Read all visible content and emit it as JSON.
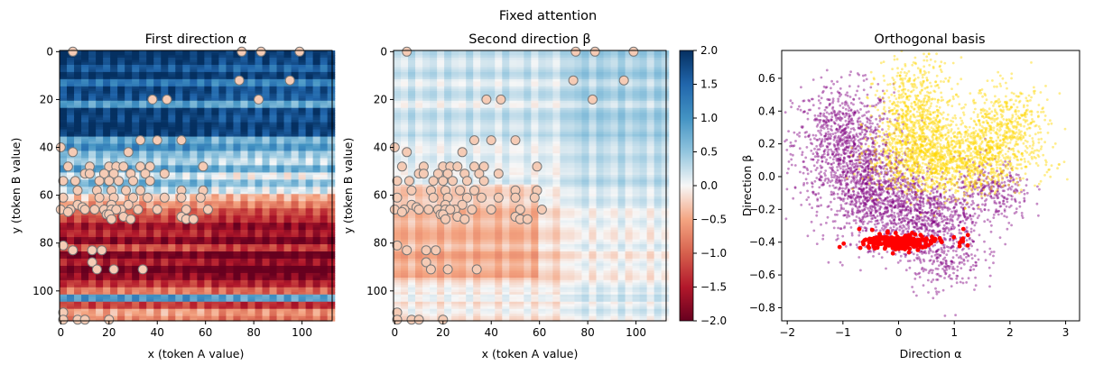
{
  "suptitle": "Fixed attention",
  "chart_data": [
    {
      "type": "heatmap",
      "title": "First direction α",
      "xlabel": "x (token A value)",
      "ylabel": "y (token B value)",
      "xlim": [
        0,
        113
      ],
      "ylim": [
        113,
        0
      ],
      "xticks": [
        0,
        20,
        40,
        60,
        80,
        100
      ],
      "yticks": [
        0,
        20,
        40,
        60,
        80,
        100
      ],
      "colormap": "RdBu",
      "vmin": -2.0,
      "vmax": 2.0,
      "row_profile": [
        {
          "y": 0,
          "v": 2.0
        },
        {
          "y": 3,
          "v": 1.9
        },
        {
          "y": 6,
          "v": 1.6
        },
        {
          "y": 9,
          "v": 2.0
        },
        {
          "y": 12,
          "v": 1.3
        },
        {
          "y": 15,
          "v": 1.8
        },
        {
          "y": 18,
          "v": 1.7
        },
        {
          "y": 21,
          "v": 0.9
        },
        {
          "y": 24,
          "v": 1.9
        },
        {
          "y": 27,
          "v": 1.8
        },
        {
          "y": 30,
          "v": 2.0
        },
        {
          "y": 33,
          "v": 1.9
        },
        {
          "y": 36,
          "v": 0.8
        },
        {
          "y": 39,
          "v": 1.1
        },
        {
          "y": 42,
          "v": 0.6
        },
        {
          "y": 45,
          "v": 0.4
        },
        {
          "y": 48,
          "v": 0.9
        },
        {
          "y": 51,
          "v": 0.2
        },
        {
          "y": 54,
          "v": 0.7
        },
        {
          "y": 57,
          "v": 0.3
        },
        {
          "y": 60,
          "v": -0.3
        },
        {
          "y": 63,
          "v": -0.6
        },
        {
          "y": 66,
          "v": -1.0
        },
        {
          "y": 69,
          "v": -1.2
        },
        {
          "y": 72,
          "v": -1.6
        },
        {
          "y": 75,
          "v": -1.4
        },
        {
          "y": 78,
          "v": -1.8
        },
        {
          "y": 81,
          "v": -1.1
        },
        {
          "y": 84,
          "v": -1.9
        },
        {
          "y": 87,
          "v": -1.5
        },
        {
          "y": 90,
          "v": -2.0
        },
        {
          "y": 93,
          "v": -1.7
        },
        {
          "y": 96,
          "v": -1.3
        },
        {
          "y": 99,
          "v": -0.8
        },
        {
          "y": 102,
          "v": 1.0
        },
        {
          "y": 105,
          "v": -1.2
        },
        {
          "y": 108,
          "v": -0.5
        },
        {
          "y": 111,
          "v": -0.7
        }
      ],
      "points": [
        [
          5,
          0
        ],
        [
          75,
          0
        ],
        [
          83,
          0
        ],
        [
          99,
          0
        ],
        [
          74,
          12
        ],
        [
          95,
          12
        ],
        [
          38,
          20
        ],
        [
          44,
          20
        ],
        [
          82,
          20
        ],
        [
          33,
          37
        ],
        [
          40,
          37
        ],
        [
          50,
          37
        ],
        [
          0,
          40
        ],
        [
          5,
          42
        ],
        [
          28,
          42
        ],
        [
          33,
          48
        ],
        [
          37,
          48
        ],
        [
          3,
          48
        ],
        [
          12,
          48
        ],
        [
          20,
          48
        ],
        [
          23,
          48
        ],
        [
          26,
          48
        ],
        [
          59,
          48
        ],
        [
          10,
          51
        ],
        [
          12,
          51
        ],
        [
          18,
          51
        ],
        [
          22,
          51
        ],
        [
          29,
          51
        ],
        [
          35,
          51
        ],
        [
          43,
          51
        ],
        [
          1,
          54
        ],
        [
          6,
          54
        ],
        [
          16,
          54
        ],
        [
          20,
          54
        ],
        [
          24,
          54
        ],
        [
          30,
          54
        ],
        [
          37,
          54
        ],
        [
          7,
          58
        ],
        [
          15,
          58
        ],
        [
          21,
          58
        ],
        [
          27,
          58
        ],
        [
          33,
          58
        ],
        [
          50,
          58
        ],
        [
          59,
          58
        ],
        [
          1,
          61
        ],
        [
          16,
          61
        ],
        [
          22,
          61
        ],
        [
          30,
          61
        ],
        [
          36,
          61
        ],
        [
          43,
          61
        ],
        [
          50,
          61
        ],
        [
          58,
          61
        ],
        [
          7,
          64
        ],
        [
          21,
          64
        ],
        [
          28,
          64
        ],
        [
          9,
          65
        ],
        [
          18,
          66
        ],
        [
          25,
          66
        ],
        [
          0,
          66
        ],
        [
          4,
          66
        ],
        [
          10,
          66
        ],
        [
          14,
          66
        ],
        [
          21,
          66
        ],
        [
          23,
          66
        ],
        [
          32,
          66
        ],
        [
          40,
          66
        ],
        [
          52,
          66
        ],
        [
          61,
          66
        ],
        [
          3,
          67
        ],
        [
          19,
          68
        ],
        [
          20,
          68
        ],
        [
          26,
          69
        ],
        [
          50,
          69
        ],
        [
          21,
          70
        ],
        [
          52,
          70
        ],
        [
          55,
          70
        ],
        [
          29,
          70
        ],
        [
          1,
          81
        ],
        [
          5,
          83
        ],
        [
          13,
          83
        ],
        [
          17,
          83
        ],
        [
          13,
          88
        ],
        [
          15,
          91
        ],
        [
          22,
          91
        ],
        [
          34,
          91
        ],
        [
          1,
          109
        ],
        [
          1,
          112
        ],
        [
          7,
          112
        ],
        [
          10,
          112
        ],
        [
          20,
          112
        ]
      ]
    },
    {
      "type": "heatmap",
      "title": "Second direction β",
      "xlabel": "x (token A value)",
      "ylabel": "y (token B value)",
      "xlim": [
        0,
        113
      ],
      "ylim": [
        113,
        0
      ],
      "xticks": [
        0,
        20,
        40,
        60,
        80,
        100
      ],
      "yticks": [
        0,
        20,
        40,
        60,
        80,
        100
      ],
      "colormap": "RdBu",
      "vmin": -2.0,
      "vmax": 2.0,
      "colorbar_ticks": [
        2.0,
        1.5,
        1.0,
        0.5,
        0.0,
        -0.5,
        -1.0,
        -1.5,
        -2.0
      ],
      "colorbar_tick_labels": [
        "2.0",
        "1.5",
        "1.0",
        "0.5",
        "0.0",
        "−0.5",
        "−1.0",
        "−1.5",
        "−2.0"
      ],
      "points_same_as_first": true
    },
    {
      "type": "scatter",
      "title": "Orthogonal basis",
      "xlabel": "Direction α",
      "ylabel": "Direction β",
      "xlim": [
        -2.1,
        3.25
      ],
      "ylim": [
        -0.88,
        0.77
      ],
      "xticks": [
        -2,
        -1,
        0,
        1,
        2,
        3
      ],
      "yticks": [
        0.6,
        0.4,
        0.2,
        0.0,
        -0.2,
        -0.4,
        -0.6,
        -0.8
      ],
      "ytick_labels": [
        "0.6",
        "0.4",
        "0.2",
        "0.0",
        "−0.2",
        "−0.4",
        "−0.6",
        "−0.8"
      ],
      "xtick_labels": [
        "−2",
        "−1",
        "0",
        "1",
        "2",
        "3"
      ],
      "series": [
        {
          "color": "#800080",
          "clusters": [
            {
              "cx": -1.0,
              "cy": 0.2,
              "sx": 0.45,
              "sy": 0.18,
              "n": 900
            },
            {
              "cx": -0.5,
              "cy": -0.1,
              "sx": 0.4,
              "sy": 0.15,
              "n": 700
            },
            {
              "cx": 0.3,
              "cy": -0.2,
              "sx": 0.5,
              "sy": 0.12,
              "n": 700
            },
            {
              "cx": 0.8,
              "cy": -0.45,
              "sx": 0.35,
              "sy": 0.13,
              "n": 350
            },
            {
              "cx": 1.7,
              "cy": -0.1,
              "sx": 0.35,
              "sy": 0.1,
              "n": 300
            }
          ]
        },
        {
          "color": "#ffd700",
          "clusters": [
            {
              "cx": 0.3,
              "cy": 0.35,
              "sx": 0.35,
              "sy": 0.18,
              "n": 800
            },
            {
              "cx": 0.6,
              "cy": 0.1,
              "sx": 0.6,
              "sy": 0.1,
              "n": 700
            },
            {
              "cx": 1.9,
              "cy": 0.3,
              "sx": 0.4,
              "sy": 0.12,
              "n": 500
            },
            {
              "cx": 1.4,
              "cy": 0.1,
              "sx": 0.6,
              "sy": 0.1,
              "n": 500
            }
          ]
        },
        {
          "color": "#ff0000",
          "clusters": [
            {
              "cx": 0.0,
              "cy": -0.4,
              "sx": 0.3,
              "sy": 0.025,
              "n": 220
            },
            {
              "cx": 1.15,
              "cy": -0.39,
              "sx": 0.05,
              "sy": 0.03,
              "n": 10
            },
            {
              "cx": -1.05,
              "cy": -0.42,
              "sx": 0.03,
              "sy": 0.01,
              "n": 2
            },
            {
              "cx": 0.75,
              "cy": -0.37,
              "sx": 0.05,
              "sy": 0.02,
              "n": 4
            }
          ]
        }
      ]
    }
  ]
}
